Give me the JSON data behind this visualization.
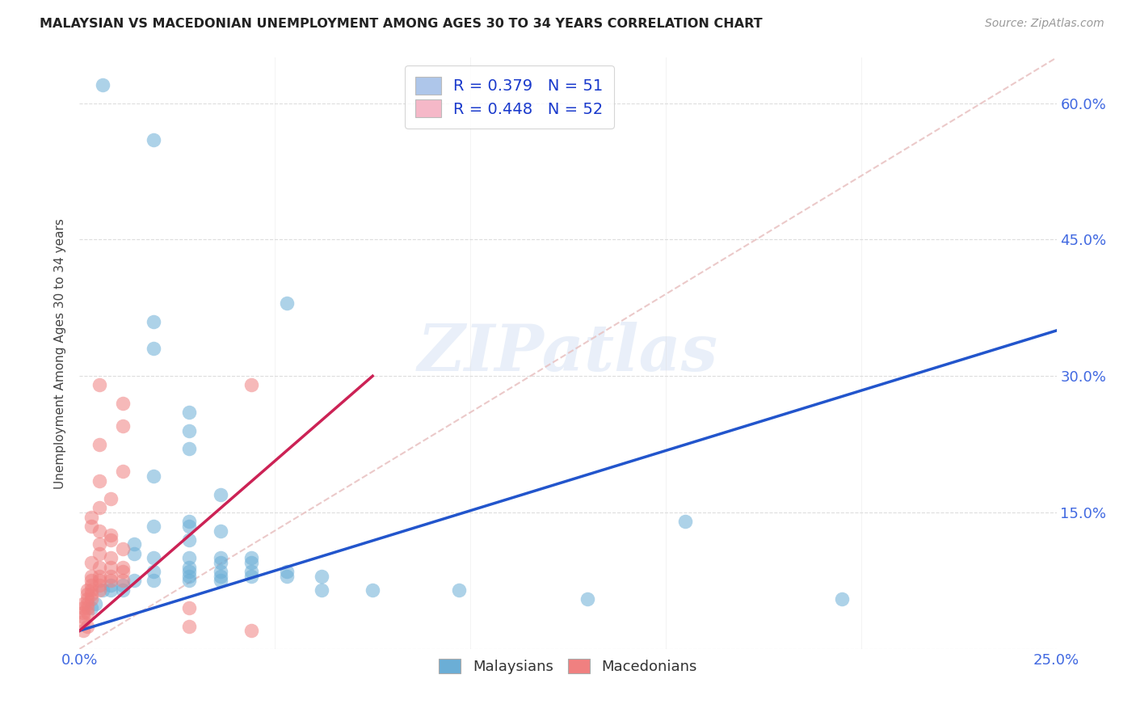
{
  "title": "MALAYSIAN VS MACEDONIAN UNEMPLOYMENT AMONG AGES 30 TO 34 YEARS CORRELATION CHART",
  "source": "Source: ZipAtlas.com",
  "ylabel": "Unemployment Among Ages 30 to 34 years",
  "ytick_labels": [
    "0.0%",
    "15.0%",
    "30.0%",
    "45.0%",
    "60.0%"
  ],
  "ytick_values": [
    0.0,
    0.15,
    0.3,
    0.45,
    0.6
  ],
  "xtick_labels": [
    "0.0%",
    "25.0%"
  ],
  "xtick_values": [
    0.0,
    0.25
  ],
  "xlim": [
    0.0,
    0.25
  ],
  "ylim": [
    0.0,
    0.65
  ],
  "watermark": "ZIPatlas",
  "legend_entries": [
    {
      "label": "R = 0.379   N = 51",
      "facecolor": "#aec6ea"
    },
    {
      "label": "R = 0.448   N = 52",
      "facecolor": "#f5b8c8"
    }
  ],
  "malaysian_color": "#6baed6",
  "macedonian_color": "#f08080",
  "blue_line_color": "#2255cc",
  "pink_line_color": "#cc2255",
  "ref_line_color": "#cccccc",
  "grid_color": "#dddddd",
  "title_color": "#222222",
  "axis_tick_color": "#4169e1",
  "source_color": "#999999",
  "blue_line": {
    "x0": 0.0,
    "y0": 0.02,
    "x1": 0.25,
    "y1": 0.35
  },
  "pink_line": {
    "x0": 0.0,
    "y0": 0.02,
    "x1": 0.075,
    "y1": 0.3
  },
  "malaysian_points": [
    [
      0.006,
      0.62
    ],
    [
      0.019,
      0.56
    ],
    [
      0.053,
      0.38
    ],
    [
      0.019,
      0.36
    ],
    [
      0.019,
      0.33
    ],
    [
      0.028,
      0.26
    ],
    [
      0.028,
      0.24
    ],
    [
      0.028,
      0.22
    ],
    [
      0.019,
      0.19
    ],
    [
      0.036,
      0.17
    ],
    [
      0.028,
      0.14
    ],
    [
      0.019,
      0.135
    ],
    [
      0.028,
      0.135
    ],
    [
      0.036,
      0.13
    ],
    [
      0.028,
      0.12
    ],
    [
      0.014,
      0.115
    ],
    [
      0.014,
      0.105
    ],
    [
      0.019,
      0.1
    ],
    [
      0.028,
      0.1
    ],
    [
      0.036,
      0.1
    ],
    [
      0.044,
      0.1
    ],
    [
      0.036,
      0.095
    ],
    [
      0.044,
      0.095
    ],
    [
      0.028,
      0.09
    ],
    [
      0.019,
      0.085
    ],
    [
      0.028,
      0.085
    ],
    [
      0.036,
      0.085
    ],
    [
      0.044,
      0.085
    ],
    [
      0.053,
      0.085
    ],
    [
      0.028,
      0.08
    ],
    [
      0.036,
      0.08
    ],
    [
      0.044,
      0.08
    ],
    [
      0.053,
      0.08
    ],
    [
      0.062,
      0.08
    ],
    [
      0.014,
      0.075
    ],
    [
      0.019,
      0.075
    ],
    [
      0.028,
      0.075
    ],
    [
      0.036,
      0.075
    ],
    [
      0.008,
      0.07
    ],
    [
      0.011,
      0.07
    ],
    [
      0.006,
      0.065
    ],
    [
      0.008,
      0.065
    ],
    [
      0.011,
      0.065
    ],
    [
      0.062,
      0.065
    ],
    [
      0.075,
      0.065
    ],
    [
      0.004,
      0.05
    ],
    [
      0.003,
      0.045
    ],
    [
      0.155,
      0.14
    ],
    [
      0.097,
      0.065
    ],
    [
      0.13,
      0.055
    ],
    [
      0.195,
      0.055
    ]
  ],
  "macedonian_points": [
    [
      0.005,
      0.29
    ],
    [
      0.011,
      0.27
    ],
    [
      0.011,
      0.245
    ],
    [
      0.005,
      0.225
    ],
    [
      0.011,
      0.195
    ],
    [
      0.005,
      0.185
    ],
    [
      0.008,
      0.165
    ],
    [
      0.005,
      0.155
    ],
    [
      0.003,
      0.145
    ],
    [
      0.044,
      0.29
    ],
    [
      0.003,
      0.135
    ],
    [
      0.005,
      0.13
    ],
    [
      0.008,
      0.125
    ],
    [
      0.008,
      0.12
    ],
    [
      0.005,
      0.115
    ],
    [
      0.011,
      0.11
    ],
    [
      0.005,
      0.105
    ],
    [
      0.008,
      0.1
    ],
    [
      0.003,
      0.095
    ],
    [
      0.005,
      0.09
    ],
    [
      0.008,
      0.09
    ],
    [
      0.011,
      0.09
    ],
    [
      0.011,
      0.085
    ],
    [
      0.003,
      0.08
    ],
    [
      0.005,
      0.08
    ],
    [
      0.008,
      0.08
    ],
    [
      0.003,
      0.075
    ],
    [
      0.005,
      0.075
    ],
    [
      0.008,
      0.075
    ],
    [
      0.011,
      0.075
    ],
    [
      0.003,
      0.07
    ],
    [
      0.005,
      0.07
    ],
    [
      0.002,
      0.065
    ],
    [
      0.003,
      0.065
    ],
    [
      0.005,
      0.065
    ],
    [
      0.002,
      0.06
    ],
    [
      0.003,
      0.06
    ],
    [
      0.002,
      0.055
    ],
    [
      0.003,
      0.055
    ],
    [
      0.001,
      0.05
    ],
    [
      0.002,
      0.05
    ],
    [
      0.001,
      0.045
    ],
    [
      0.002,
      0.045
    ],
    [
      0.001,
      0.04
    ],
    [
      0.002,
      0.04
    ],
    [
      0.001,
      0.035
    ],
    [
      0.001,
      0.03
    ],
    [
      0.002,
      0.025
    ],
    [
      0.001,
      0.02
    ],
    [
      0.028,
      0.045
    ],
    [
      0.028,
      0.025
    ],
    [
      0.044,
      0.02
    ]
  ]
}
